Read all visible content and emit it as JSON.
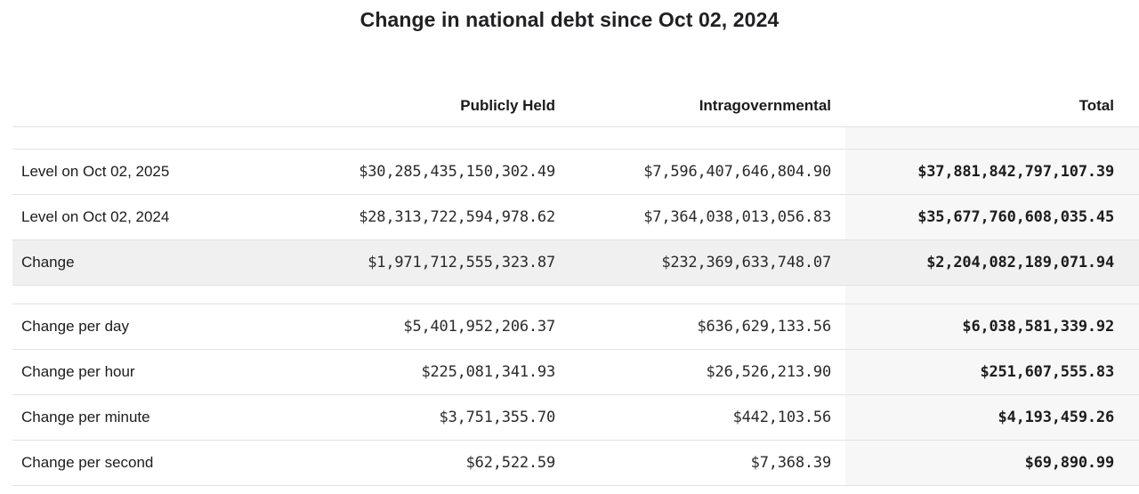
{
  "title": {
    "prefix": "Change in national debt ",
    "suffix": "since Oct 02, 2024"
  },
  "table": {
    "header": {
      "label": "",
      "publicly_held": "Publicly Held",
      "intragovernmental": "Intragovernmental",
      "total": "Total"
    },
    "groups": [
      {
        "rows": [
          {
            "label": "Level on Oct 02, 2025",
            "publicly_held": "$30,285,435,150,302.49",
            "intragovernmental": "$7,596,407,646,804.90",
            "total": "$37,881,842,797,107.39",
            "highlight": false
          },
          {
            "label": "Level on Oct 02, 2024",
            "publicly_held": "$28,313,722,594,978.62",
            "intragovernmental": "$7,364,038,013,056.83",
            "total": "$35,677,760,608,035.45",
            "highlight": false
          },
          {
            "label": "Change",
            "publicly_held": "$1,971,712,555,323.87",
            "intragovernmental": "$232,369,633,748.07",
            "total": "$2,204,082,189,071.94",
            "highlight": true
          }
        ]
      },
      {
        "rows": [
          {
            "label": "Change per day",
            "publicly_held": "$5,401,952,206.37",
            "intragovernmental": "$636,629,133.56",
            "total": "$6,038,581,339.92",
            "highlight": false
          },
          {
            "label": "Change per hour",
            "publicly_held": "$225,081,341.93",
            "intragovernmental": "$26,526,213.90",
            "total": "$251,607,555.83",
            "highlight": false
          },
          {
            "label": "Change per minute",
            "publicly_held": "$3,751,355.70",
            "intragovernmental": "$442,103.56",
            "total": "$4,193,459.26",
            "highlight": false
          },
          {
            "label": "Change per second",
            "publicly_held": "$62,522.59",
            "intragovernmental": "$7,368.39",
            "total": "$69,890.99",
            "highlight": false
          }
        ]
      }
    ]
  },
  "colors": {
    "text": "#1c1c1e",
    "num_text": "#2a2a2c",
    "border": "#e2e2e4",
    "highlight_row_bg": "#f0f0f1",
    "total_col_bg": "#f7f7f8",
    "page_bg": "#ffffff"
  }
}
